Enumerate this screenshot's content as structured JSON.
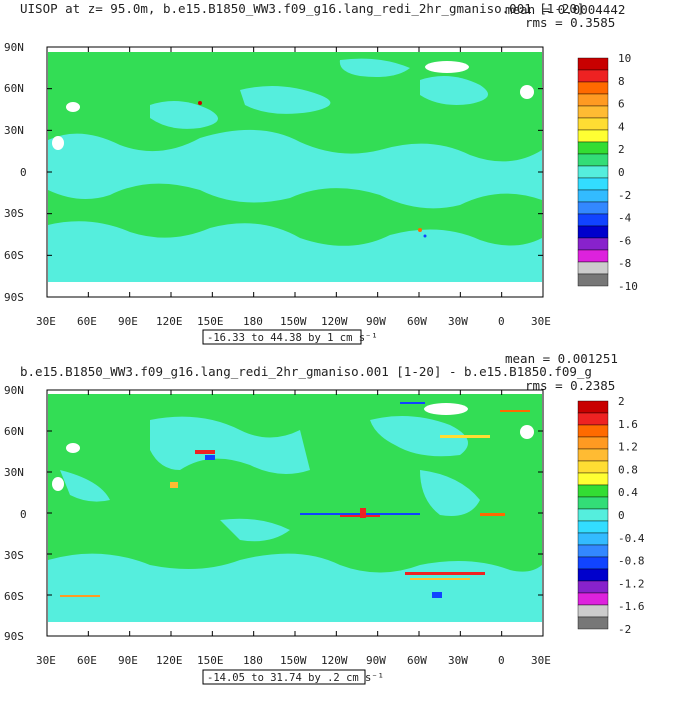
{
  "panels": [
    {
      "title": "UISOP at z=  95.0m, b.e15.B1850_WW3.f09_g16.lang_redi_2hr_gmaniso.001 [1-20]",
      "stats": {
        "mean": "mean = 0.0004442",
        "rms": "rms = 0.3585"
      },
      "range_label": "-16.33 to 44.38 by 1 cm s⁻¹",
      "colorbar": {
        "labels": [
          "10",
          "8",
          "6",
          "4",
          "2",
          "0",
          "-2",
          "-4",
          "-6",
          "-8",
          "-10"
        ]
      }
    },
    {
      "title": "b.e15.B1850_WW3.f09_g16.lang_redi_2hr_gmaniso.001 [1-20] - b.e15.B1850.f09_g",
      "stats": {
        "mean": "mean = 0.001251",
        "rms": "rms = 0.2385"
      },
      "range_label": "-14.05 to 31.74 by .2 cm s⁻¹",
      "colorbar": {
        "labels": [
          "2",
          "1.6",
          "1.2",
          "0.8",
          "0.4",
          "0",
          "-0.4",
          "-0.8",
          "-1.2",
          "-1.6",
          "-2"
        ]
      }
    }
  ],
  "axes": {
    "y_ticks": [
      "90N",
      "60N",
      "30N",
      "0",
      "30S",
      "60S",
      "90S"
    ],
    "x_ticks": [
      "30E",
      "60E",
      "90E",
      "120E",
      "150E",
      "180",
      "150W",
      "120W",
      "90W",
      "60W",
      "30W",
      "0",
      "30E"
    ]
  },
  "colors": {
    "ocean_green": "#33dd55",
    "ocean_cyan": "#55eedd",
    "land": "#ffffff",
    "colorbar": [
      "#c80000",
      "#ee2222",
      "#ff6a00",
      "#ff9a22",
      "#ffbb33",
      "#ffdd33",
      "#ffff33",
      "#33dd33",
      "#33dd77",
      "#55eedd",
      "#33ddff",
      "#33bbff",
      "#3388ff",
      "#1144ff",
      "#0000cc",
      "#8822cc",
      "#dd22dd",
      "#cccccc",
      "#777777"
    ]
  }
}
